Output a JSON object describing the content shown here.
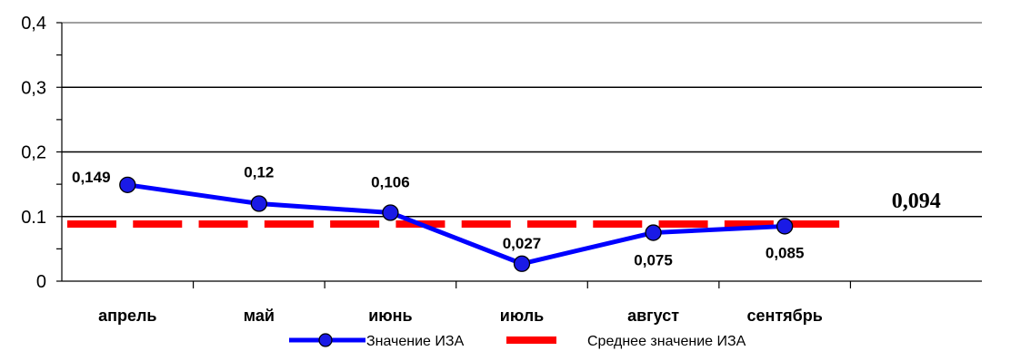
{
  "chart_data": {
    "type": "line",
    "categories": [
      "апрель",
      "май",
      "июнь",
      "июль",
      "август",
      "сентябрь"
    ],
    "series": [
      {
        "name": "Значение ИЗА",
        "values": [
          0.149,
          0.12,
          0.106,
          0.027,
          0.075,
          0.085
        ],
        "labels": [
          "0,149",
          "0,12",
          "0,106",
          "0,027",
          "0,075",
          "0,085"
        ],
        "color": "#0000ff",
        "marker_color": "#1a1ae6"
      }
    ],
    "average": {
      "name": "Среднее значение ИЗА",
      "value": 0.094,
      "label": "0,094",
      "color": "#ff0000"
    },
    "y_ticks": [
      "0",
      "0.1",
      "0,2",
      "0,3",
      "0,4"
    ],
    "ylim": [
      0,
      0.4
    ],
    "grid": true,
    "legend_position": "bottom"
  }
}
